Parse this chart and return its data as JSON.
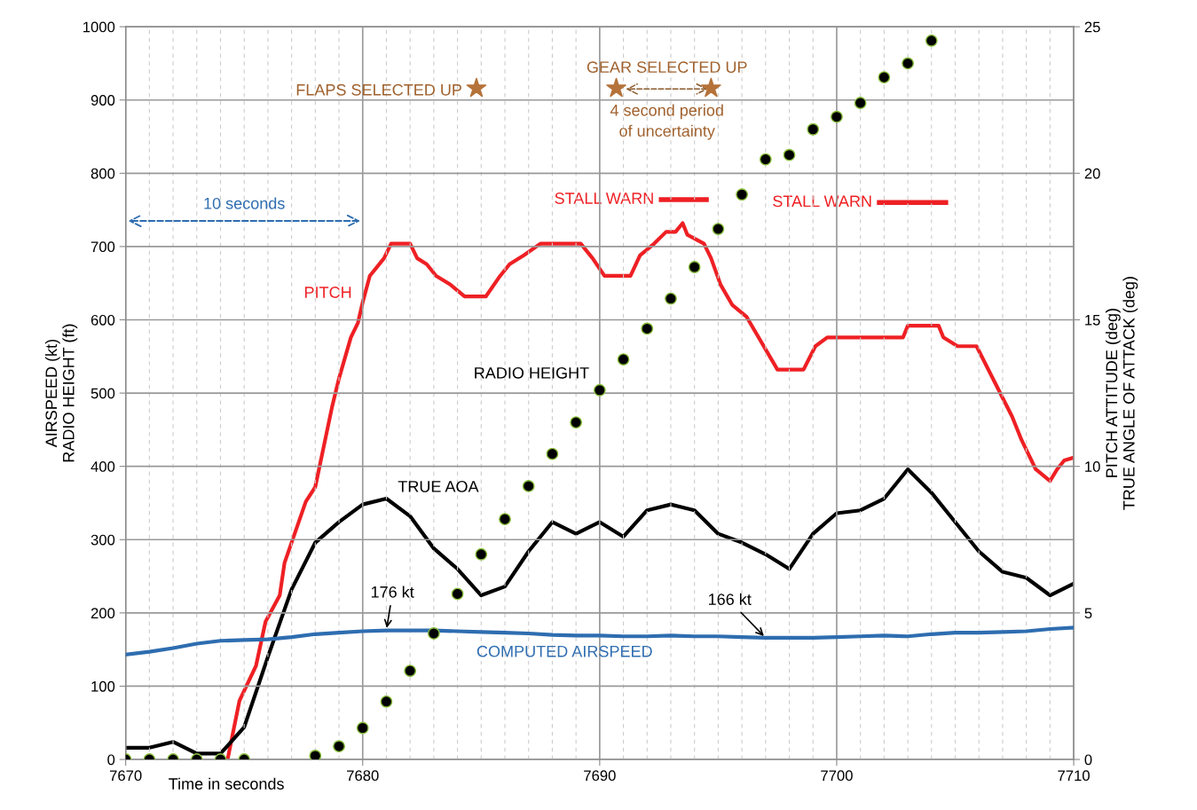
{
  "chart_data": {
    "type": "line",
    "xlabel": "Time in seconds",
    "ylabel": "AIRSPEED (kt)\nRADIO HEIGHT (ft)",
    "y2label": "PITCH ATTITUDE (deg)\nTRUE ANGLE OF ATTACK (deg)",
    "xlim": [
      7670,
      7710
    ],
    "xticks": [
      7670,
      7680,
      7690,
      7700,
      7710
    ],
    "ylim": [
      0,
      1000
    ],
    "yticks": [
      0,
      100,
      200,
      300,
      400,
      500,
      600,
      700,
      800,
      900,
      1000
    ],
    "y2lim": [
      0,
      25
    ],
    "y2ticks": [
      0,
      5,
      10,
      15,
      20,
      25
    ],
    "grid": true,
    "legend": false,
    "series": [
      {
        "name": "COMPUTED AIRSPEED",
        "color": "#2e6db0",
        "x": [
          7670,
          7671,
          7672,
          7673,
          7674,
          7675,
          7676,
          7677,
          7678,
          7679,
          7680,
          7681,
          7682,
          7683,
          7684,
          7685,
          7686,
          7687,
          7688,
          7689,
          7690,
          7691,
          7692,
          7693,
          7694,
          7695,
          7696,
          7697,
          7698,
          7699,
          7700,
          7701,
          7702,
          7703,
          7704,
          7705,
          7706,
          7707,
          7708,
          7709,
          7710
        ],
        "values": [
          143,
          147,
          152,
          158,
          162,
          163,
          164,
          167,
          171,
          173,
          175,
          176,
          176,
          176,
          175,
          174,
          173,
          172,
          170,
          169,
          169,
          168,
          168,
          169,
          168,
          168,
          167,
          166,
          166,
          166,
          167,
          168,
          169,
          168,
          171,
          173,
          173,
          174,
          175,
          178,
          180
        ]
      },
      {
        "name": "RADIO HEIGHT",
        "type": "scatter",
        "color": "#000000",
        "marker": "circle",
        "x": [
          7670,
          7671,
          7672,
          7673,
          7674,
          7675,
          7678,
          7679,
          7680,
          7681,
          7682,
          7683,
          7684,
          7685,
          7686,
          7687,
          7688,
          7689,
          7690,
          7691,
          7692,
          7693,
          7694,
          7695,
          7696,
          7697,
          7698,
          7699,
          7700,
          7701,
          7702,
          7703,
          7704
        ],
        "values": [
          0,
          0,
          0,
          0,
          0,
          0,
          5,
          18,
          43,
          79,
          121,
          172,
          226,
          280,
          328,
          373,
          417,
          460,
          504,
          546,
          588,
          629,
          672,
          724,
          771,
          819,
          825,
          860,
          877,
          896,
          931,
          950,
          981
        ]
      },
      {
        "name": "PITCH",
        "axis": "y2",
        "color": "#ee2024",
        "x": [
          7674.3,
          7674.8,
          7675.5,
          7675.9,
          7676.5,
          7676.7,
          7677.6,
          7678.0,
          7678.7,
          7679.0,
          7679.5,
          7679.8,
          7680.0,
          7680.3,
          7680.9,
          7681.2,
          7682.0,
          7682.3,
          7682.7,
          7683.1,
          7683.7,
          7684.3,
          7685.2,
          7685.8,
          7686.2,
          7686.8,
          7687.5,
          7689.2,
          7689.7,
          7690.2,
          7691.3,
          7691.7,
          7692.3,
          7692.8,
          7693.2,
          7693.5,
          7693.7,
          7694.4,
          7694.7,
          7695.1,
          7695.6,
          7696.2,
          7697.5,
          7698.6,
          7699.1,
          7699.6,
          7702.8,
          7703.0,
          7704.3,
          7704.5,
          7705.1,
          7705.9,
          7707.4,
          7707.8,
          7708.4,
          7709.0,
          7709.3,
          7709.6,
          7710
        ],
        "values": [
          0,
          2.0,
          3.2,
          4.7,
          5.6,
          6.7,
          8.8,
          9.3,
          12.0,
          13.0,
          14.4,
          14.9,
          15.6,
          16.5,
          17.1,
          17.6,
          17.6,
          17.1,
          16.9,
          16.5,
          16.2,
          15.8,
          15.8,
          16.5,
          16.9,
          17.2,
          17.6,
          17.6,
          17.1,
          16.5,
          16.5,
          17.2,
          17.6,
          18.0,
          18.0,
          18.3,
          17.9,
          17.6,
          17.1,
          16.2,
          15.5,
          15.1,
          13.3,
          13.3,
          14.1,
          14.4,
          14.4,
          14.8,
          14.8,
          14.4,
          14.1,
          14.1,
          11.7,
          10.9,
          9.9,
          9.5,
          9.9,
          10.2,
          10.3
        ]
      },
      {
        "name": "TRUE AOA",
        "axis": "y2",
        "color": "#000000",
        "x": [
          7670,
          7671,
          7672,
          7673,
          7674,
          7675,
          7676,
          7677,
          7678,
          7679,
          7680,
          7681,
          7682,
          7683,
          7684,
          7685,
          7686,
          7687,
          7688,
          7689,
          7690,
          7691,
          7692,
          7693,
          7694,
          7695,
          7696,
          7697,
          7698,
          7699,
          7700,
          7701,
          7702,
          7703,
          7704,
          7705,
          7706,
          7707,
          7708,
          7709,
          7710
        ],
        "values": [
          0.4,
          0.4,
          0.6,
          0.2,
          0.2,
          1.1,
          3.5,
          5.8,
          7.4,
          8.1,
          8.7,
          8.9,
          8.3,
          7.2,
          6.5,
          5.6,
          5.9,
          7.1,
          8.1,
          7.7,
          8.1,
          7.6,
          8.5,
          8.7,
          8.5,
          7.7,
          7.4,
          7.0,
          6.5,
          7.7,
          8.4,
          8.5,
          8.9,
          9.9,
          9.1,
          8.1,
          7.1,
          6.4,
          6.2,
          5.6,
          6.0
        ]
      },
      {
        "name": "STALL WARN",
        "type": "line",
        "axis": "y2",
        "color": "#ee2024",
        "x": [
          7692.6,
          7694.5
        ],
        "values": [
          19.1,
          19.1
        ]
      },
      {
        "name": "STALL WARN",
        "type": "line",
        "axis": "y2",
        "color": "#ee2024",
        "x": [
          7701.8,
          7704.6
        ],
        "values": [
          19.0,
          19.0
        ]
      },
      {
        "type": "scatter",
        "marker": "star",
        "color": "#b5733a",
        "x": [
          7684.8,
          7690.7,
          7694.7
        ],
        "values": [
          916,
          916,
          916
        ]
      }
    ],
    "annotations": [
      "FLAPS SELECTED UP",
      "GEAR SELECTED UP",
      "4 second period\nof uncertainty",
      "10 seconds",
      {
        "text": "176 kt",
        "x": 7681,
        "y": 176
      },
      {
        "text": "166 kt",
        "x": 7697,
        "y": 166
      }
    ]
  }
}
